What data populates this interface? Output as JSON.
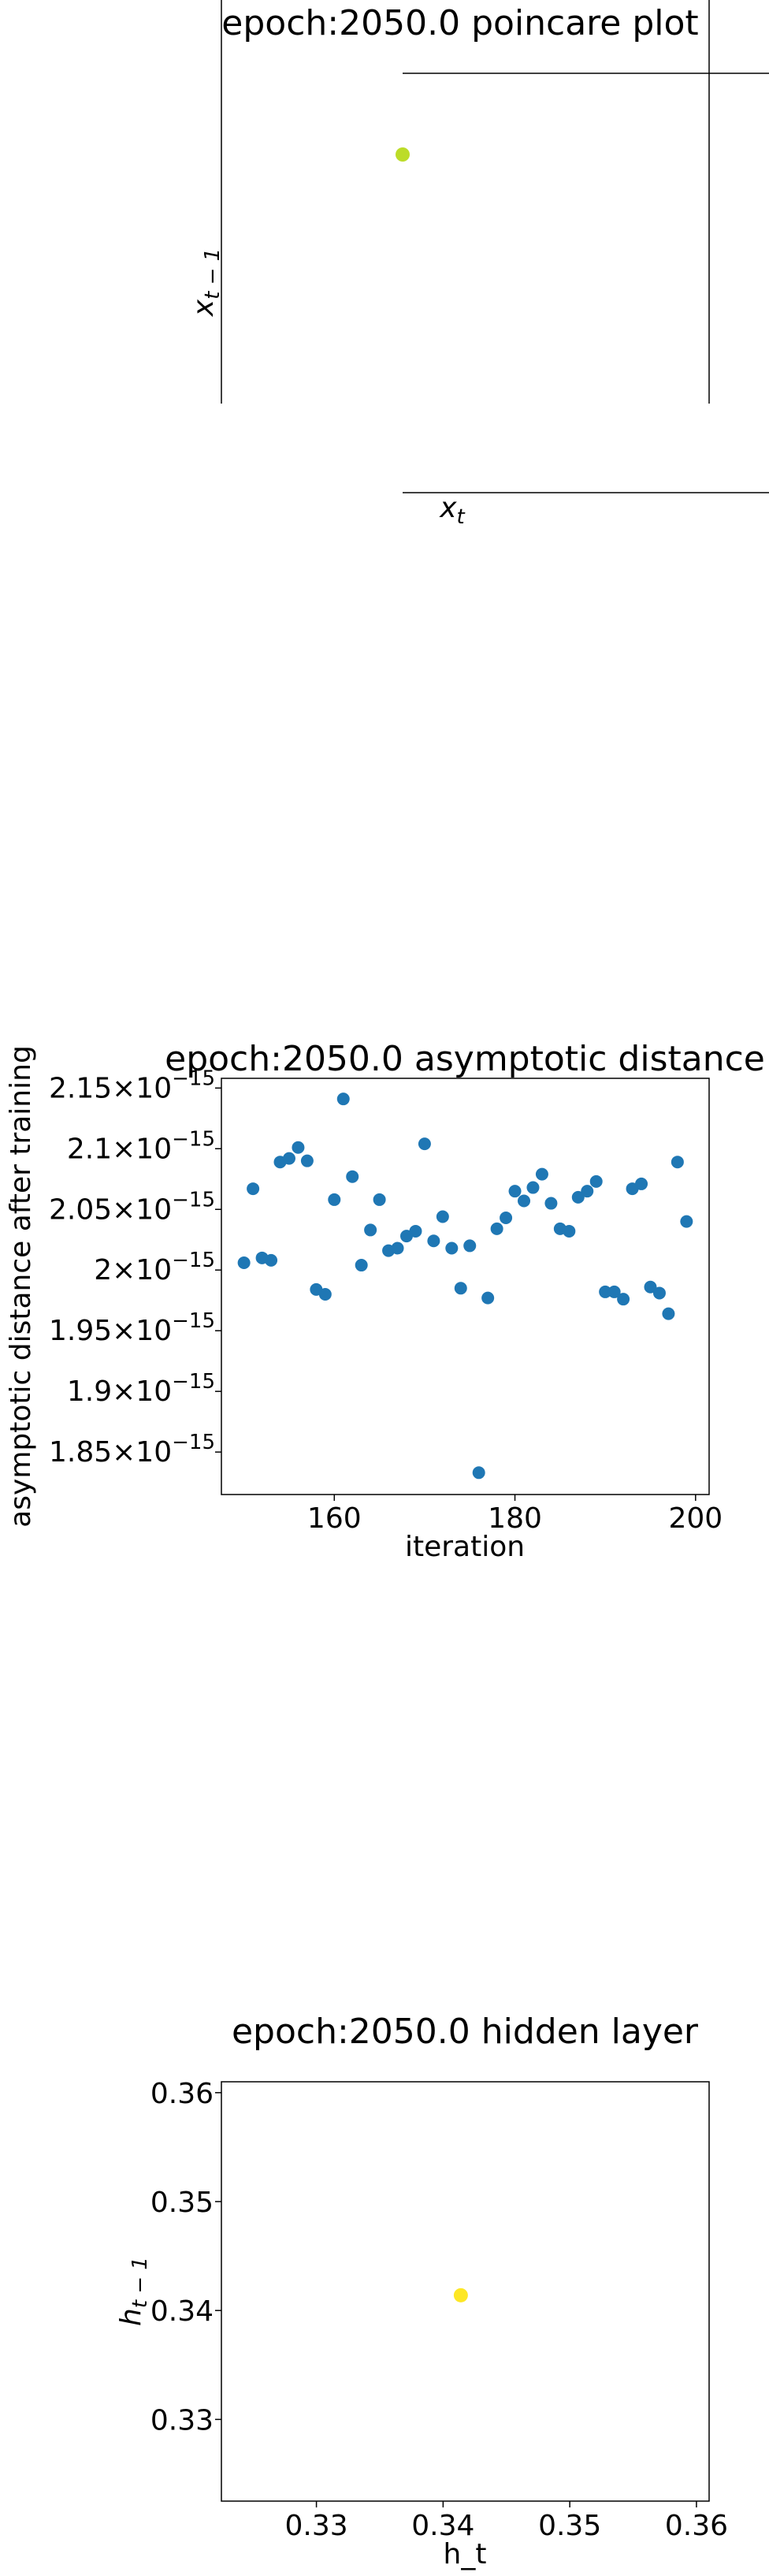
{
  "chart_data": [
    {
      "type": "scatter",
      "title": "epoch:2050.0 poincare plot",
      "xlabel": "x_t",
      "ylabel": "x_{t-1}",
      "points": [
        {
          "x": 0,
          "y": 0
        }
      ],
      "point_color": "#bcdc28",
      "grid": false
    },
    {
      "type": "scatter",
      "title": "epoch:2050.0 asymptotic distance",
      "xlabel": "iteration",
      "ylabel": "asymptotic distance after training",
      "xlim": [
        147.5,
        201.5
      ],
      "ylim": [
        1.815,
        2.158
      ],
      "y_exponent": -15,
      "x_ticks": [
        "160",
        "180",
        "200"
      ],
      "y_ticks": [
        {
          "value": 2.15,
          "mantissa": "2.15"
        },
        {
          "value": 2.1,
          "mantissa": "2.1"
        },
        {
          "value": 2.05,
          "mantissa": "2.05"
        },
        {
          "value": 2.0,
          "mantissa": "2"
        },
        {
          "value": 1.95,
          "mantissa": "1.95"
        },
        {
          "value": 1.9,
          "mantissa": "1.9"
        },
        {
          "value": 1.85,
          "mantissa": "1.85"
        }
      ],
      "x": [
        150,
        151,
        152,
        153,
        154,
        155,
        156,
        157,
        158,
        159,
        160,
        161,
        162,
        163,
        164,
        165,
        166,
        167,
        168,
        169,
        170,
        171,
        172,
        173,
        174,
        175,
        176,
        177,
        178,
        179,
        180,
        181,
        182,
        183,
        184,
        185,
        186,
        187,
        188,
        189,
        190,
        191,
        192,
        193,
        194,
        195,
        196,
        197,
        198,
        199
      ],
      "y": [
        2.006,
        2.067,
        2.01,
        2.008,
        2.089,
        2.092,
        2.101,
        2.09,
        1.984,
        1.98,
        2.058,
        2.141,
        2.077,
        2.004,
        2.033,
        2.058,
        2.016,
        2.018,
        2.028,
        2.032,
        2.104,
        2.024,
        2.044,
        2.018,
        1.985,
        2.02,
        1.833,
        1.977,
        2.034,
        2.043,
        2.065,
        2.057,
        2.068,
        2.079,
        2.055,
        2.034,
        2.032,
        2.06,
        2.065,
        2.073,
        1.982,
        1.982,
        1.976,
        2.067,
        2.071,
        1.986,
        1.981,
        1.964,
        2.089,
        2.04
      ],
      "point_color": "#1f77b4",
      "grid": false
    },
    {
      "type": "scatter",
      "title": "epoch:2050.0 hidden layer",
      "xlabel": "h_t",
      "ylabel": "h_{t-1}",
      "xlim": [
        0.3225,
        0.361
      ],
      "ylim": [
        0.3225,
        0.361
      ],
      "x_ticks": [
        "0.33",
        "0.34",
        "0.35",
        "0.36"
      ],
      "y_ticks": [
        "0.36",
        "0.35",
        "0.34",
        "0.33"
      ],
      "points": [
        {
          "x": 0.3414,
          "y": 0.3414
        }
      ],
      "point_color": "#fde725",
      "grid": false
    }
  ]
}
